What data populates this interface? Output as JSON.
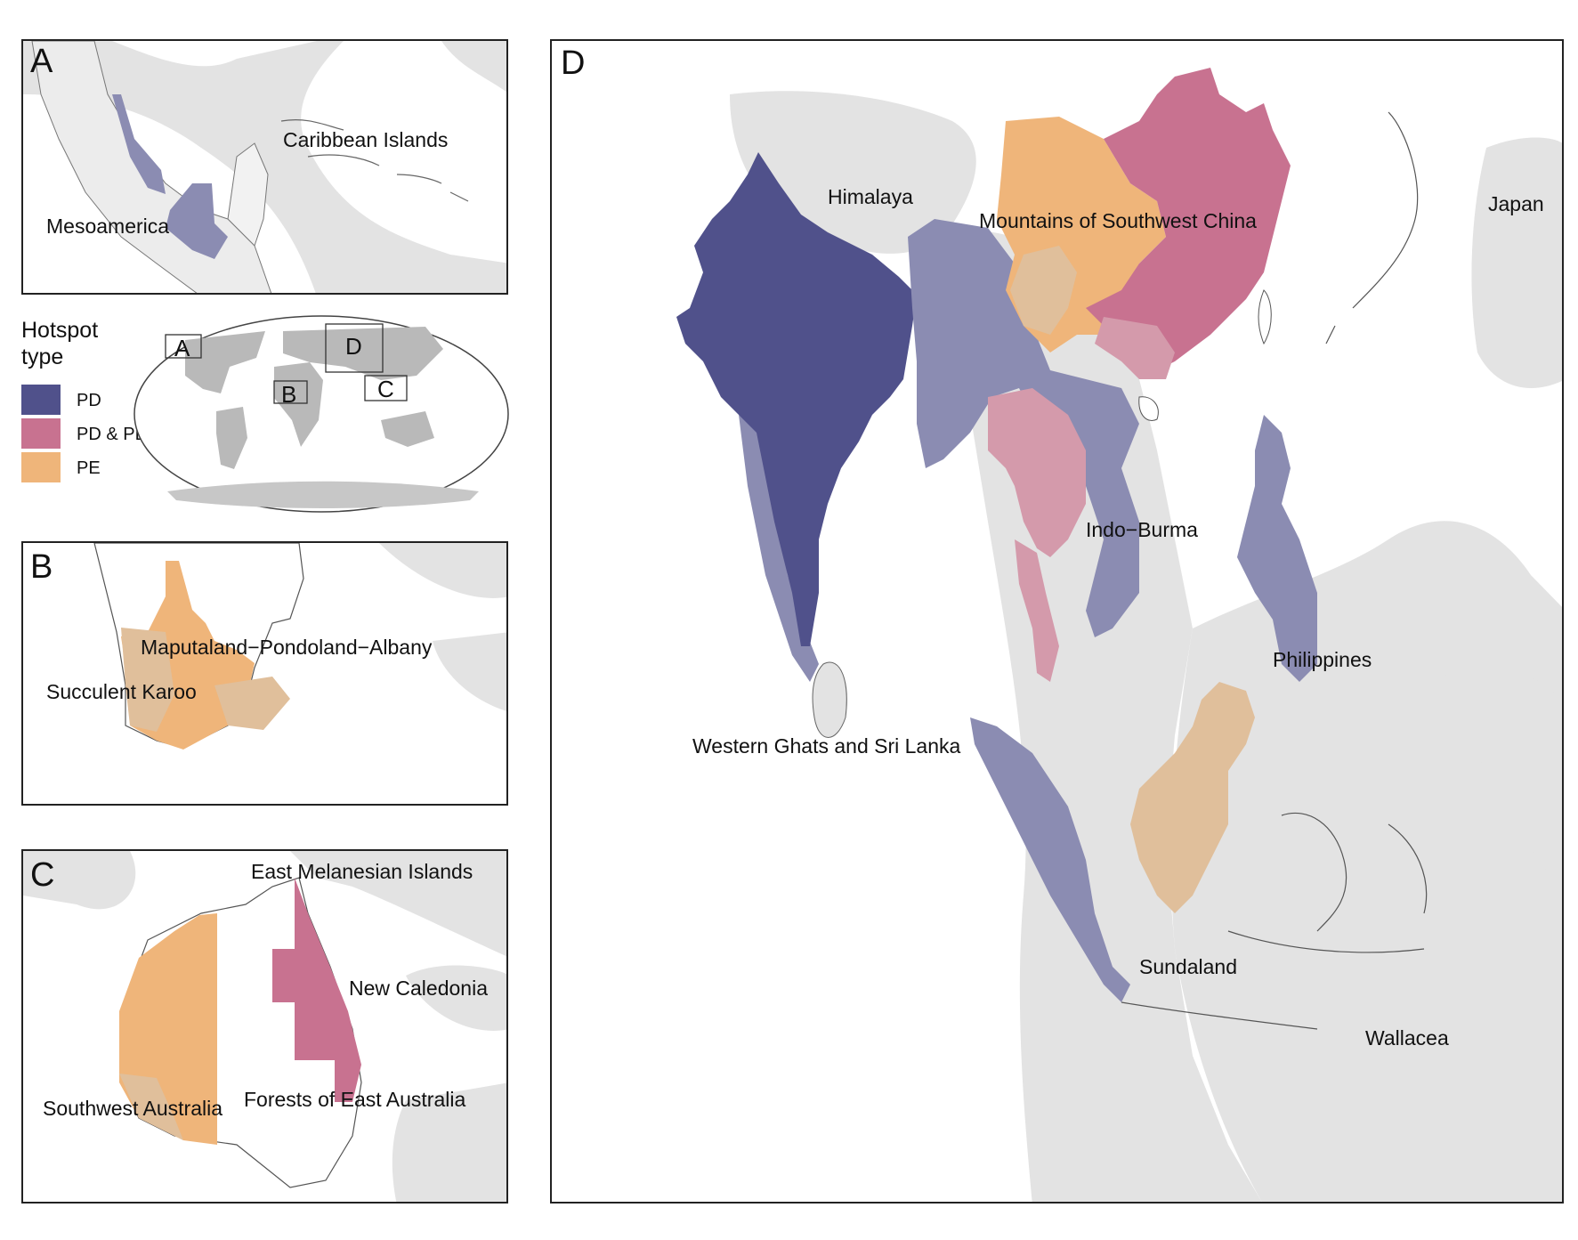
{
  "colors": {
    "PD": "#50518b",
    "PD_faded": "#8b8cb2",
    "PD_PE": "#c87290",
    "PD_PE_faded": "#d49aab",
    "PE": "#efb57a",
    "PE_faded": "#e0bf9b",
    "background_band": "#e3e3e3",
    "land_outline": "#555555"
  },
  "legend": {
    "title_line1": "Hotspot",
    "title_line2": "type",
    "items": [
      {
        "key": "PD",
        "label": "PD",
        "color": "#50518b"
      },
      {
        "key": "PD_PE",
        "label": "PD & PE",
        "color": "#c87290"
      },
      {
        "key": "PE",
        "label": "PE",
        "color": "#efb57a"
      }
    ]
  },
  "world_map": {
    "inset_labels": [
      "A",
      "B",
      "C",
      "D"
    ]
  },
  "panels": {
    "A": {
      "letter": "A",
      "labels": [
        "Caribbean Islands",
        "Mesoamerica"
      ]
    },
    "B": {
      "letter": "B",
      "labels": [
        "Maputaland−Pondoland−Albany",
        "Succulent Karoo"
      ]
    },
    "C": {
      "letter": "C",
      "labels": [
        "East Melanesian Islands",
        "New Caledonia",
        "Southwest Australia",
        "Forests of East Australia"
      ]
    },
    "D": {
      "letter": "D",
      "labels": [
        "Himalaya",
        "Mountains of Southwest China",
        "Japan",
        "Indo−Burma",
        "Philippines",
        "Western Ghats and Sri Lanka",
        "Sundaland",
        "Wallacea"
      ]
    }
  }
}
